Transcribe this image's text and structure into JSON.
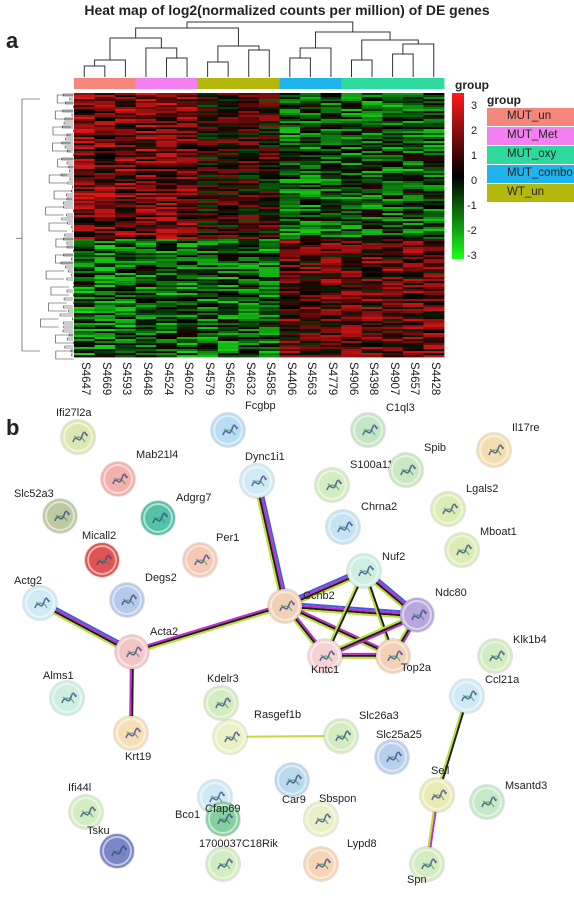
{
  "figure": {
    "title": "Heat map of log2(normalized counts per million) of DE genes",
    "panel_a": "a",
    "panel_b": "b"
  },
  "heatmap": {
    "legend_title": "group",
    "scale_ticks": [
      "3",
      "2",
      "1",
      "0",
      "-1",
      "-2",
      "-3"
    ],
    "group_legend_title": "group",
    "groups": [
      {
        "name": "MUT_un",
        "color": "#f4867c"
      },
      {
        "name": "MUT_Met",
        "color": "#f47ff0"
      },
      {
        "name": "MUT_oxy",
        "color": "#2ed99e"
      },
      {
        "name": "MUT_combo",
        "color": "#20b4ec"
      },
      {
        "name": "WT_un",
        "color": "#b5b80c"
      }
    ],
    "samples": [
      "S4647",
      "S4669",
      "S4593",
      "S4648",
      "S4524",
      "S4602",
      "S4579",
      "S4562",
      "S4632",
      "S4585",
      "S4406",
      "S4563",
      "S4779",
      "S4906",
      "S4398",
      "S4907",
      "S4657",
      "S4428"
    ],
    "sample_groups": [
      0,
      0,
      0,
      1,
      1,
      1,
      4,
      4,
      4,
      4,
      3,
      3,
      3,
      2,
      2,
      2,
      2,
      2
    ],
    "colors": {
      "high": "#ff1a1a",
      "mid": "#000000",
      "low": "#1aff1a"
    }
  },
  "network": {
    "nodes": [
      {
        "id": "Ifi27l2a",
        "color": "#dde8b0"
      },
      {
        "id": "Fcgbp",
        "color": "#b9dcf5"
      },
      {
        "id": "C1ql3",
        "color": "#c4e6c4"
      },
      {
        "id": "Il17re",
        "color": "#f3dfae"
      },
      {
        "id": "Mab21l4",
        "color": "#f4b0aa"
      },
      {
        "id": "Dync1i1",
        "color": "#cfeaf3"
      },
      {
        "id": "S100a11",
        "color": "#d3ecc2"
      },
      {
        "id": "Spib",
        "color": "#c9e8c2"
      },
      {
        "id": "Slc52a3",
        "color": "#bdc9a0"
      },
      {
        "id": "Adgrg7",
        "color": "#55c2a8"
      },
      {
        "id": "Chrna2",
        "color": "#c6e3f3"
      },
      {
        "id": "Lgals2",
        "color": "#dcecb5"
      },
      {
        "id": "Micall2",
        "color": "#e05454"
      },
      {
        "id": "Per1",
        "color": "#f6c9b6"
      },
      {
        "id": "Mboat1",
        "color": "#dcecb5"
      },
      {
        "id": "Nuf2",
        "color": "#cdeee0"
      },
      {
        "id": "Degs2",
        "color": "#b6c8ec"
      },
      {
        "id": "Actg2",
        "color": "#cfeaf3"
      },
      {
        "id": "Ccnb2",
        "color": "#f0d1b6"
      },
      {
        "id": "Ndc80",
        "color": "#b8a6dc"
      },
      {
        "id": "Acta2",
        "color": "#f3c5c5"
      },
      {
        "id": "Kntc1",
        "color": "#f6d3d3"
      },
      {
        "id": "Klk1b4",
        "color": "#d3ecc2"
      },
      {
        "id": "Alms1",
        "color": "#cdeee0"
      },
      {
        "id": "Top2a",
        "color": "#f3d1b6"
      },
      {
        "id": "Kdelr3",
        "color": "#d3ecc2"
      },
      {
        "id": "Krt19",
        "color": "#f6dfb6"
      },
      {
        "id": "Rasgef1b",
        "color": "#ecf0c6"
      },
      {
        "id": "Slc26a3",
        "color": "#d3ecc2"
      },
      {
        "id": "Ccl21a",
        "color": "#cfeaf3"
      },
      {
        "id": "Slc25a25",
        "color": "#b9d0ec"
      },
      {
        "id": "Car9",
        "color": "#b9d9ec"
      },
      {
        "id": "Bco1",
        "color": "#cfeaf3"
      },
      {
        "id": "Ifi44l",
        "color": "#d3ecc2"
      },
      {
        "id": "Sell",
        "color": "#e9eab6"
      },
      {
        "id": "Msantd3",
        "color": "#c6e8c6"
      },
      {
        "id": "Cfap69",
        "color": "#86cf9e"
      },
      {
        "id": "Sbspon",
        "color": "#e9f0c6"
      },
      {
        "id": "Tsku",
        "color": "#7a86c6"
      },
      {
        "id": "1700037C18Rik",
        "color": "#d3ecc2"
      },
      {
        "id": "Lypd8",
        "color": "#f6d5b6"
      },
      {
        "id": "Spn",
        "color": "#d3ecc2"
      }
    ]
  }
}
